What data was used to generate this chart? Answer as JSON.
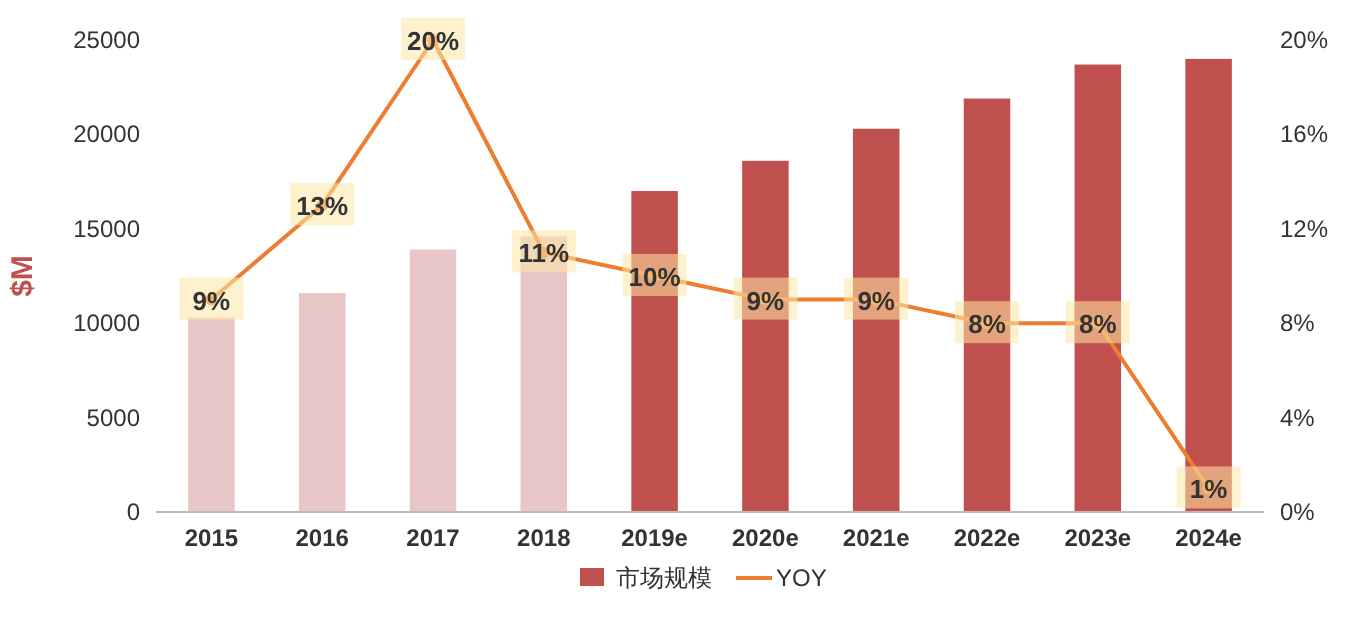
{
  "chart_data": {
    "type": "bar",
    "categories": [
      "2015",
      "2016",
      "2017",
      "2018",
      "2019e",
      "2020e",
      "2021e",
      "2022e",
      "2023e",
      "2024e"
    ],
    "ylabel": "$M",
    "ylim": [
      0,
      25000
    ],
    "yticks": [
      0,
      5000,
      10000,
      15000,
      20000,
      25000
    ],
    "y2lim": [
      0,
      20
    ],
    "y2ticks": [
      {
        "value": 0,
        "label": "0%"
      },
      {
        "value": 4,
        "label": "4%"
      },
      {
        "value": 8,
        "label": "8%"
      },
      {
        "value": 12,
        "label": "12%"
      },
      {
        "value": 16,
        "label": "16%"
      },
      {
        "value": 20,
        "label": "20%"
      }
    ],
    "legend": "bottom",
    "series": [
      {
        "name": "市场规模",
        "color": "#c0504d",
        "colors": [
          "#e8c6c6",
          "#e8c6c6",
          "#e8c6c6",
          "#e8c6c6",
          "#c0504d",
          "#c0504d",
          "#c0504d",
          "#c0504d",
          "#c0504d",
          "#c0504d"
        ],
        "values": [
          10300,
          11600,
          13900,
          14600,
          17000,
          18600,
          20300,
          21900,
          23700,
          24000
        ]
      },
      {
        "name": "YOY",
        "type": "line",
        "axis": "y2",
        "color": "#ed7d31",
        "marker": "circle",
        "values": [
          9,
          13,
          20,
          11,
          10,
          9,
          9,
          8,
          8,
          1
        ],
        "value_labels": [
          "9%",
          "13%",
          "20%",
          "11%",
          "10%",
          "9%",
          "9%",
          "8%",
          "8%",
          "1%"
        ]
      }
    ]
  }
}
